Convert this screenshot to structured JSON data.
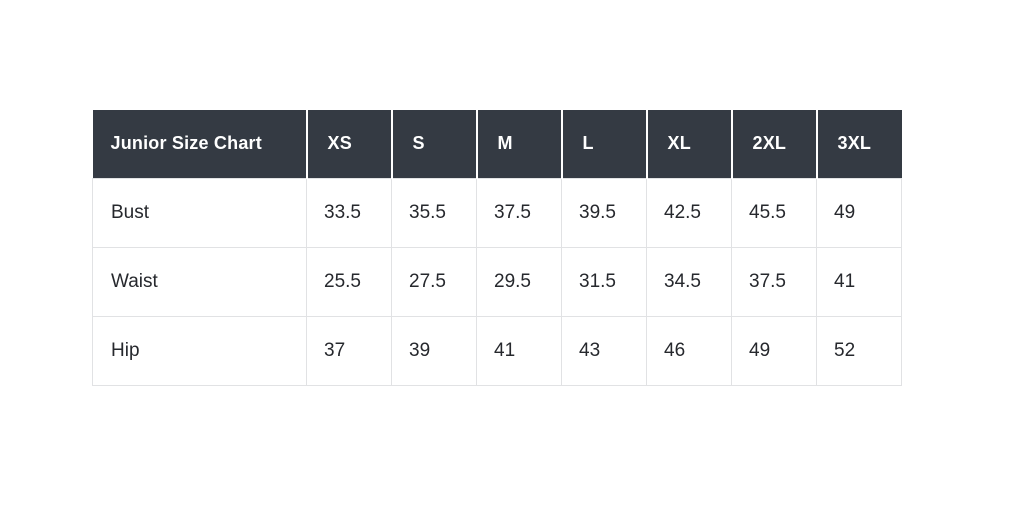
{
  "colors": {
    "header_bg": "#343a43",
    "header_text": "#ffffff",
    "body_text": "#26282d",
    "border": "#e1e2e4",
    "page_bg": "#ffffff"
  },
  "chart_data": {
    "type": "table",
    "title": "Junior Size Chart",
    "columns": [
      "XS",
      "S",
      "M",
      "L",
      "XL",
      "2XL",
      "3XL"
    ],
    "rows": [
      {
        "label": "Bust",
        "values": [
          33.5,
          35.5,
          37.5,
          39.5,
          42.5,
          45.5,
          49
        ]
      },
      {
        "label": "Waist",
        "values": [
          25.5,
          27.5,
          29.5,
          31.5,
          34.5,
          37.5,
          41
        ]
      },
      {
        "label": "Hip",
        "values": [
          37,
          39,
          41,
          43,
          46,
          49,
          52
        ]
      }
    ],
    "layout": {
      "header_style": "dark-row",
      "grid": true,
      "first_column_is_row_labels": true
    }
  }
}
